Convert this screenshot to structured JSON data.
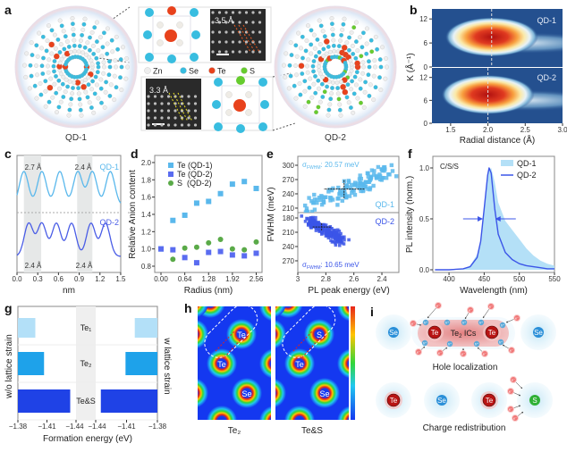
{
  "panel_labels": {
    "a": "a",
    "b": "b",
    "c": "c",
    "d": "d",
    "e": "e",
    "f": "f",
    "g": "g",
    "h": "h",
    "i": "i"
  },
  "panel_a": {
    "qd1_label": "QD-1",
    "qd2_label": "QD-2",
    "hrtem_top_spacing": "3.5 Å",
    "hrtem_bottom_spacing": "3.3 Å",
    "legend": [
      {
        "label": "Zn",
        "color": "#eeeeee"
      },
      {
        "label": "Se",
        "color": "#38bde0"
      },
      {
        "label": "Te",
        "color": "#e8421c"
      },
      {
        "label": "S",
        "color": "#66cc2e"
      }
    ]
  },
  "chart_data": [
    {
      "panel": "b",
      "type": "heatmap",
      "xlabel": "Radial distance (Å)",
      "ylabel": "K (Å⁻¹)",
      "xticks": [
        "1.5",
        "2.0",
        "2.5",
        "3.0"
      ],
      "yticks": [
        "0",
        "6",
        "12"
      ],
      "xlim": [
        1.25,
        3.0
      ],
      "ylim": [
        0,
        14.5
      ],
      "subplots": [
        {
          "name": "QD-1",
          "peak": {
            "r": 2.05,
            "k": 7.5
          },
          "dashed_line_r": 2.05
        },
        {
          "name": "QD-2",
          "peak": {
            "r": 2.0,
            "k": 7.5
          },
          "dashed_line_r": 2.0
        }
      ]
    },
    {
      "panel": "c",
      "type": "line",
      "xlabel": "nm",
      "xticks": [
        "0.0",
        "0.3",
        "0.6",
        "0.9",
        "1.2",
        "1.5"
      ],
      "xlim": [
        0,
        1.5
      ],
      "series": [
        {
          "name": "QD-1",
          "color": "#5ab8ec",
          "peaks": [
            0.1,
            0.36,
            0.62,
            0.88,
            1.09,
            1.35
          ]
        },
        {
          "name": "QD-2",
          "color": "#4a5de6",
          "peaks": [
            0.17,
            0.36,
            0.57,
            0.79,
            1.07,
            1.28
          ]
        }
      ],
      "shaded_regions": [
        [
          0.1,
          0.35
        ],
        [
          0.87,
          1.09
        ]
      ],
      "annotations": [
        "2.7 Å",
        "2.4 Å",
        "2.4 Å",
        "2.4 Å"
      ]
    },
    {
      "panel": "d",
      "type": "scatter",
      "xlabel": "Radius (nm)",
      "ylabel": "Relative Anion content",
      "xticks": [
        "0.00",
        "0.64",
        "1.28",
        "1.92",
        "2.56"
      ],
      "yticks": [
        "0.8",
        "1.0",
        "1.2",
        "1.4",
        "1.6",
        "1.8",
        "2.0"
      ],
      "xlim": [
        0,
        2.56
      ],
      "ylim": [
        0.8,
        2.0
      ],
      "series": [
        {
          "name": "Te (QD-1)",
          "color": "#5ab8ec",
          "marker": "square",
          "x": [
            0.0,
            0.32,
            0.64,
            0.96,
            1.28,
            1.6,
            1.92,
            2.24,
            2.56
          ],
          "y": [
            1.0,
            1.33,
            1.39,
            1.53,
            1.55,
            1.64,
            1.75,
            1.78,
            1.7
          ]
        },
        {
          "name": "Te (QD-2)",
          "color": "#5a6cf0",
          "marker": "square",
          "x": [
            0.0,
            0.32,
            0.64,
            0.96,
            1.28,
            1.6,
            1.92,
            2.24,
            2.56
          ],
          "y": [
            1.0,
            0.99,
            0.9,
            0.84,
            0.96,
            0.97,
            0.93,
            0.92,
            0.95
          ]
        },
        {
          "name": "S  (QD-2)",
          "color": "#5aaa48",
          "marker": "circle",
          "x": [
            0.32,
            0.64,
            0.96,
            1.28,
            1.6,
            1.92,
            2.24,
            2.56
          ],
          "y": [
            0.88,
            1.01,
            1.02,
            1.07,
            1.11,
            1.0,
            0.99,
            1.08
          ]
        }
      ]
    },
    {
      "panel": "e",
      "type": "scatter",
      "xlabel": "PL peak energy (eV)",
      "ylabel": "FWHM (meV)",
      "xticks": [
        "3",
        "2.8",
        "2.6",
        "2.4"
      ],
      "xlim": [
        3.0,
        2.32
      ],
      "subplots": [
        {
          "name": "QD-1",
          "color": "#5ab8ec",
          "yticks": [
            "210",
            "240",
            "270",
            "300"
          ],
          "ylim": [
            200,
            310
          ],
          "sigma_label": "σ",
          "sigma_sub": "FWHM",
          "sigma_value": ": 20.57 meV",
          "mean": {
            "x": 2.67,
            "y": 250
          },
          "err": {
            "x": 0.145,
            "y": 19
          },
          "trend": {
            "x": [
              2.95,
              2.33
            ],
            "y": [
              215,
              285
            ]
          },
          "n_points": 130
        },
        {
          "name": "QD-2",
          "color": "#3b55e8",
          "yticks": [
            "180",
            "210",
            "240",
            "270"
          ],
          "ylim": [
            170,
            285
          ],
          "y_reversed": true,
          "sigma_label": "σ",
          "sigma_sub": "FWHM",
          "sigma_value": ": 10.65 meV",
          "mean": {
            "x": 2.83,
            "y": 199
          },
          "err": {
            "x": 0.064,
            "y": 8
          },
          "trend": {
            "x": [
              2.93,
              2.68
            ],
            "y": [
              183,
              228
            ]
          },
          "n_points": 200
        }
      ]
    },
    {
      "panel": "f",
      "type": "area",
      "xlabel": "Wavelength (nm)",
      "ylabel": "PL intensity (norm.)",
      "annotation": "C/S/S",
      "xticks": [
        "400",
        "450",
        "500",
        "550"
      ],
      "yticks": [
        "0.0",
        "0.5",
        "1.0"
      ],
      "xlim": [
        377,
        550
      ],
      "ylim": [
        0,
        1.1
      ],
      "x": [
        380,
        400,
        420,
        430,
        440,
        445,
        450,
        455,
        457,
        460,
        465,
        470,
        480,
        490,
        500,
        510,
        520,
        530,
        540,
        550
      ],
      "series": [
        {
          "name": "QD-1",
          "style": "filled",
          "color": "#b4e0f7",
          "values": [
            0,
            0,
            0.01,
            0.04,
            0.15,
            0.3,
            0.6,
            0.92,
            0.98,
            1.0,
            0.86,
            0.66,
            0.48,
            0.39,
            0.3,
            0.21,
            0.14,
            0.09,
            0.06,
            0.04
          ]
        },
        {
          "name": "QD-2",
          "style": "line",
          "color": "#3b55e8",
          "values": [
            0,
            0,
            0.01,
            0.03,
            0.12,
            0.28,
            0.6,
            0.93,
            1.0,
            0.95,
            0.6,
            0.35,
            0.17,
            0.1,
            0.06,
            0.04,
            0.03,
            0.02,
            0.01,
            0.01
          ]
        }
      ],
      "fwhm_arrows_at": 0.5
    },
    {
      "panel": "g",
      "type": "bar",
      "orientation": "horizontal",
      "xlabel": "Formation energy (eV)",
      "left_label": "w/o lattice strain",
      "right_label": "w lattice strain",
      "xticks_left": [
        "−1.38",
        "−1.41",
        "−1.44"
      ],
      "xticks_right": [
        "−1.44",
        "−1.41",
        "−1.38"
      ],
      "categories": [
        "Te₁",
        "Te₂",
        "Te&S"
      ],
      "colors": [
        "#b3e0f8",
        "#1ea2ea",
        "#1f42e6"
      ],
      "series": [
        {
          "name": "w/o lattice strain",
          "values": [
            -1.398,
            -1.407,
            -1.434
          ]
        },
        {
          "name": "w lattice strain",
          "values": [
            -1.402,
            -1.411,
            -1.435
          ]
        }
      ]
    }
  ],
  "panel_h": {
    "map_labels": [
      "Te₂",
      "Te&S"
    ],
    "map1_atoms": [
      "Te",
      "Te",
      "Se"
    ],
    "map2_atoms": [
      "S",
      "Te",
      "Se"
    ]
  },
  "panel_i": {
    "hole_caption": "Hole localization",
    "charge_caption": "Charge redistribution",
    "ics_label": "Te",
    "ics_sub": "2",
    "ics_suffix": " ICs",
    "top_row": [
      "Se",
      "Te",
      "Te",
      "Se"
    ],
    "bottom_row": [
      "Te",
      "Se",
      "Te",
      "S"
    ],
    "hole_symbol": "h⁺",
    "electron_symbol": "e⁻"
  }
}
